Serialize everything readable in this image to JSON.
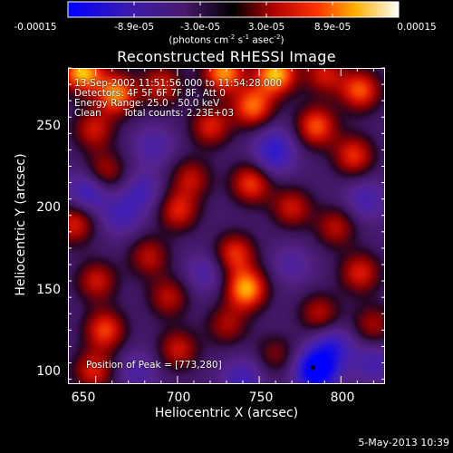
{
  "colorbar": {
    "tick_labels": [
      "-0.00015",
      "-8.9e-05",
      "-3.0e-05",
      "3.0e-05",
      "8.9e-05",
      "0.00015"
    ],
    "units_prefix": "(photons cm",
    "units_exp1": "-2",
    "units_mid": " s",
    "units_exp2": "-1",
    "units_mid2": " asec",
    "units_exp3": "-2",
    "units_suffix": ")"
  },
  "title": "Reconstructed RHESSI Image",
  "annotations": {
    "time_range": "13-Sep-2002 11:51:56.000 to 11:54:28.000",
    "detectors": "Detectors: 4F 5F 6F 7F 8F, Att 0",
    "energy": "Energy Range: 25.0 - 50.0 keV",
    "clean": "Clean",
    "counts": "Total counts: 2.23E+03",
    "peak": "Position of Peak = [773,280]"
  },
  "axes": {
    "xlabel": "Heliocentric X (arcsec)",
    "ylabel": "Heliocentric Y (arcsec)",
    "x_ticks": [
      "650",
      "700",
      "750",
      "800"
    ],
    "y_ticks": [
      "100",
      "150",
      "200",
      "250"
    ]
  },
  "footer_date": "5-May-2013 10:39",
  "chart_data": {
    "type": "heatmap",
    "title": "Reconstructed RHESSI Image",
    "xlabel": "Heliocentric X (arcsec)",
    "ylabel": "Heliocentric Y (arcsec)",
    "xlim": [
      633,
      827
    ],
    "ylim": [
      92,
      285
    ],
    "x_ticks": [
      650,
      700,
      750,
      800
    ],
    "y_ticks": [
      100,
      150,
      200,
      250
    ],
    "colorbar_range": [
      -0.00015,
      0.00015
    ],
    "colorbar_units": "photons cm-2 s-1 asec-2",
    "peak_position": [
      773,
      280
    ],
    "blobs": [
      {
        "x": 641,
        "y": 283,
        "v": 1.0
      },
      {
        "x": 662,
        "y": 270,
        "v": 0.9
      },
      {
        "x": 690,
        "y": 275,
        "v": 0.6
      },
      {
        "x": 728,
        "y": 283,
        "v": 0.9
      },
      {
        "x": 760,
        "y": 282,
        "v": 1.0
      },
      {
        "x": 790,
        "y": 282,
        "v": 0.55
      },
      {
        "x": 812,
        "y": 272,
        "v": 0.75
      },
      {
        "x": 648,
        "y": 248,
        "v": 0.55
      },
      {
        "x": 720,
        "y": 250,
        "v": 0.6
      },
      {
        "x": 746,
        "y": 262,
        "v": 0.8
      },
      {
        "x": 785,
        "y": 250,
        "v": 0.75
      },
      {
        "x": 808,
        "y": 232,
        "v": 0.65
      },
      {
        "x": 655,
        "y": 222,
        "v": 0.5
      },
      {
        "x": 708,
        "y": 218,
        "v": 0.5
      },
      {
        "x": 745,
        "y": 215,
        "v": 0.7
      },
      {
        "x": 770,
        "y": 200,
        "v": 0.55
      },
      {
        "x": 797,
        "y": 188,
        "v": 0.5
      },
      {
        "x": 636,
        "y": 190,
        "v": 0.6
      },
      {
        "x": 700,
        "y": 198,
        "v": 0.6
      },
      {
        "x": 650,
        "y": 155,
        "v": 0.55
      },
      {
        "x": 682,
        "y": 170,
        "v": 0.5
      },
      {
        "x": 735,
        "y": 172,
        "v": 0.65
      },
      {
        "x": 742,
        "y": 150,
        "v": 0.95
      },
      {
        "x": 694,
        "y": 145,
        "v": 0.5
      },
      {
        "x": 812,
        "y": 160,
        "v": 0.6
      },
      {
        "x": 787,
        "y": 135,
        "v": 0.5
      },
      {
        "x": 655,
        "y": 125,
        "v": 0.7
      },
      {
        "x": 700,
        "y": 113,
        "v": 0.55
      },
      {
        "x": 730,
        "y": 128,
        "v": 0.45
      },
      {
        "x": 648,
        "y": 100,
        "v": 0.6
      },
      {
        "x": 820,
        "y": 128,
        "v": 0.45
      },
      {
        "x": 760,
        "y": 110,
        "v": 0.35
      },
      {
        "x": 665,
        "y": 195,
        "v": -0.35
      },
      {
        "x": 645,
        "y": 210,
        "v": -0.5
      },
      {
        "x": 678,
        "y": 210,
        "v": -0.35
      },
      {
        "x": 758,
        "y": 230,
        "v": -0.35
      },
      {
        "x": 685,
        "y": 238,
        "v": -0.3
      },
      {
        "x": 795,
        "y": 115,
        "v": -0.5
      },
      {
        "x": 785,
        "y": 100,
        "v": -1.0
      },
      {
        "x": 760,
        "y": 240,
        "v": -0.3
      },
      {
        "x": 815,
        "y": 205,
        "v": -0.35
      },
      {
        "x": 717,
        "y": 160,
        "v": -0.3
      },
      {
        "x": 675,
        "y": 100,
        "v": -0.3
      },
      {
        "x": 740,
        "y": 95,
        "v": -0.4
      },
      {
        "x": 770,
        "y": 165,
        "v": -0.25
      },
      {
        "x": 820,
        "y": 105,
        "v": -0.35
      }
    ]
  }
}
